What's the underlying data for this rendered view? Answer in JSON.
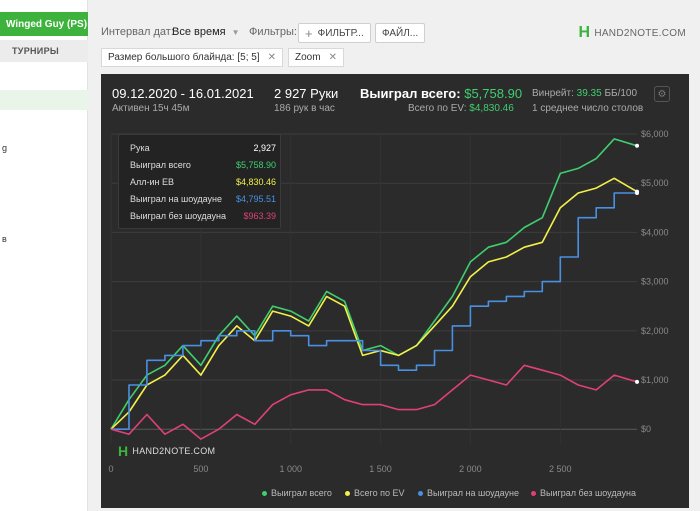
{
  "sidebar": {
    "user": "Winged Guy (PS)",
    "header": "ТУРНИРЫ",
    "fragments": [
      "g",
      "в"
    ]
  },
  "topbar": {
    "date_label": "Интервал дат:",
    "date_value": "Все время",
    "filters_label": "Фильтры:",
    "filter_button": "ФИЛЬТР...",
    "file_button": "ФАЙЛ...",
    "logo": "HAND2NOTE.COM"
  },
  "chips": [
    "Размер большого блайнда: [5; 5]",
    "Zoom"
  ],
  "summary": {
    "date_range": "09.12.2020 - 16.01.2021",
    "active": "Активен 15ч 45м",
    "hands": "2 927 Руки",
    "hands_per_hour": "186 рук в час",
    "won_label": "Выиграл всего:",
    "won_value": "$5,758.90",
    "ev_label": "Всего по EV:",
    "ev_value": "$4,830.46",
    "winrate_label": "Винрейт:",
    "winrate_value": "39.35",
    "winrate_unit": "ББ/100",
    "tables": "1 среднее число столов"
  },
  "tooltip": [
    {
      "label": "Рука",
      "value": "2,927",
      "color": "#ffffff"
    },
    {
      "label": "Выиграл всего",
      "value": "$5,758.90",
      "color": "#3fcf6e"
    },
    {
      "label": "Алл-ин EB",
      "value": "$4,830.46",
      "color": "#f3f04a"
    },
    {
      "label": "Выиграл на шоудауне",
      "value": "$4,795.51",
      "color": "#4a90e2"
    },
    {
      "label": "Выиграл без шоудауна",
      "value": "$963.39",
      "color": "#e0407a"
    }
  ],
  "watermark": "HAND2NOTE.COM",
  "chart_data": {
    "type": "line",
    "xlabel": "",
    "ylabel": "",
    "xlim": [
      0,
      2927
    ],
    "ylim": [
      -300,
      6000
    ],
    "x_ticks": [
      "0",
      "500",
      "1 000",
      "1 500",
      "2 000",
      "2 500"
    ],
    "x_tick_values": [
      0,
      500,
      1000,
      1500,
      2000,
      2500
    ],
    "y_ticks": [
      "$0",
      "$1,000",
      "$2,000",
      "$3,000",
      "$4,000",
      "$5,000",
      "$6,000"
    ],
    "y_tick_values": [
      0,
      1000,
      2000,
      3000,
      4000,
      5000,
      6000
    ],
    "grid": true,
    "legend_position": "bottom",
    "x": [
      0,
      100,
      200,
      300,
      400,
      500,
      600,
      700,
      800,
      900,
      1000,
      1100,
      1200,
      1300,
      1400,
      1500,
      1600,
      1700,
      1800,
      1900,
      2000,
      2100,
      2200,
      2300,
      2400,
      2500,
      2600,
      2700,
      2800,
      2927
    ],
    "series": [
      {
        "name": "Выиграл всего",
        "color": "#3fcf6e",
        "values": [
          0,
          600,
          1100,
          1300,
          1700,
          1300,
          1900,
          2300,
          1900,
          2500,
          2400,
          2200,
          2800,
          2600,
          1600,
          1700,
          1500,
          1700,
          2200,
          2700,
          3400,
          3700,
          3800,
          4100,
          4300,
          5200,
          5300,
          5500,
          5900,
          5760
        ]
      },
      {
        "name": "Всего по EV",
        "color": "#f3f04a",
        "values": [
          0,
          350,
          900,
          1100,
          1500,
          1100,
          1700,
          2100,
          1800,
          2400,
          2300,
          2100,
          2700,
          2500,
          1500,
          1600,
          1500,
          1700,
          2100,
          2500,
          3100,
          3400,
          3500,
          3700,
          3800,
          4500,
          4800,
          4900,
          5100,
          4830
        ]
      },
      {
        "name": "Выиграл на шоудауне",
        "color": "#4a90e2",
        "values": [
          0,
          900,
          1400,
          1500,
          1700,
          1800,
          1900,
          2000,
          1800,
          2000,
          1900,
          1700,
          1800,
          1800,
          1600,
          1300,
          1200,
          1300,
          1600,
          2100,
          2500,
          2600,
          2700,
          2800,
          3000,
          3500,
          4300,
          4500,
          4800,
          4800
        ]
      },
      {
        "name": "Выиграл без шоудауна",
        "color": "#e0407a",
        "values": [
          0,
          -100,
          300,
          -100,
          100,
          -200,
          0,
          300,
          100,
          500,
          700,
          800,
          800,
          600,
          500,
          500,
          400,
          400,
          500,
          800,
          1100,
          1000,
          900,
          1300,
          1200,
          1100,
          900,
          800,
          1100,
          963
        ]
      }
    ]
  }
}
